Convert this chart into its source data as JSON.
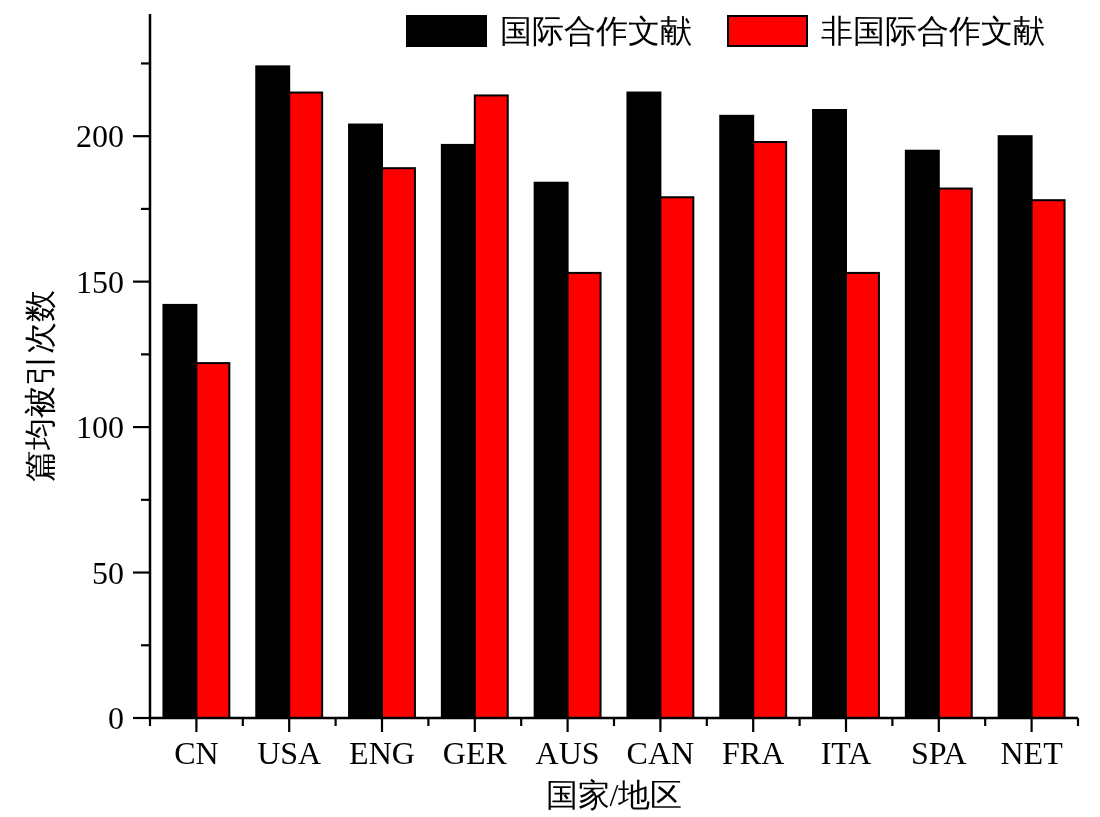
{
  "chart_data": {
    "type": "bar",
    "xlabel": "国家/地区",
    "ylabel": "篇均被引次数",
    "categories": [
      "CN",
      "USA",
      "ENG",
      "GER",
      "AUS",
      "CAN",
      "FRA",
      "ITA",
      "SPA",
      "NET"
    ],
    "series": [
      {
        "name": "国际合作文献",
        "color": "#000000",
        "values": [
          142,
          224,
          204,
          197,
          184,
          215,
          207,
          209,
          195,
          200
        ]
      },
      {
        "name": "非国际合作文献",
        "color": "#ff0000",
        "values": [
          122,
          215,
          189,
          214,
          153,
          179,
          198,
          153,
          182,
          178
        ]
      }
    ],
    "ylim": [
      0,
      242
    ],
    "yticks": [
      0,
      50,
      100,
      150,
      200,
      {
        "value": 25,
        "label": null
      },
      {
        "value": 75,
        "label": null
      },
      {
        "value": 125,
        "label": null
      },
      {
        "value": 175,
        "label": null
      },
      {
        "value": 225,
        "label": null
      }
    ],
    "legend": "top right",
    "grid": false
  }
}
